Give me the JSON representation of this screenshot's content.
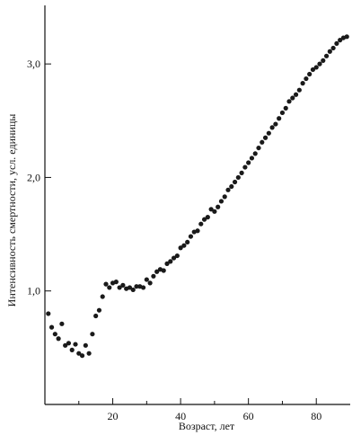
{
  "chart_data": {
    "type": "scatter",
    "title": "",
    "xlabel": "Возраст, лет",
    "ylabel": "Интенсивность смертности, усл. единицы",
    "xlim": [
      0,
      90
    ],
    "ylim": [
      0.0,
      3.5
    ],
    "grid": false,
    "legend": "none",
    "x_ticks": [
      {
        "value": 20,
        "label": "20"
      },
      {
        "value": 40,
        "label": "40"
      },
      {
        "value": 60,
        "label": "60"
      },
      {
        "value": 80,
        "label": "80"
      }
    ],
    "x_minor_ticks": [
      10,
      30,
      50,
      70
    ],
    "y_ticks": [
      {
        "value": 1.0,
        "label": "1,0"
      },
      {
        "value": 2.0,
        "label": "2,0"
      },
      {
        "value": 3.0,
        "label": "3,0"
      }
    ],
    "series": [
      {
        "points": [
          [
            1,
            0.8
          ],
          [
            2,
            0.68
          ],
          [
            3,
            0.62
          ],
          [
            4,
            0.58
          ],
          [
            5,
            0.71
          ],
          [
            6,
            0.52
          ],
          [
            7,
            0.54
          ],
          [
            8,
            0.48
          ],
          [
            9,
            0.53
          ],
          [
            10,
            0.45
          ],
          [
            11,
            0.43
          ],
          [
            12,
            0.52
          ],
          [
            13,
            0.45
          ],
          [
            14,
            0.62
          ],
          [
            15,
            0.78
          ],
          [
            16,
            0.83
          ],
          [
            17,
            0.95
          ],
          [
            18,
            1.06
          ],
          [
            19,
            1.03
          ],
          [
            20,
            1.07
          ],
          [
            21,
            1.08
          ],
          [
            22,
            1.03
          ],
          [
            23,
            1.05
          ],
          [
            24,
            1.02
          ],
          [
            25,
            1.03
          ],
          [
            26,
            1.01
          ],
          [
            27,
            1.04
          ],
          [
            28,
            1.04
          ],
          [
            29,
            1.03
          ],
          [
            30,
            1.1
          ],
          [
            31,
            1.07
          ],
          [
            32,
            1.13
          ],
          [
            33,
            1.17
          ],
          [
            34,
            1.19
          ],
          [
            35,
            1.18
          ],
          [
            36,
            1.24
          ],
          [
            37,
            1.26
          ],
          [
            38,
            1.29
          ],
          [
            39,
            1.31
          ],
          [
            40,
            1.38
          ],
          [
            41,
            1.4
          ],
          [
            42,
            1.43
          ],
          [
            43,
            1.48
          ],
          [
            44,
            1.52
          ],
          [
            45,
            1.53
          ],
          [
            46,
            1.59
          ],
          [
            47,
            1.63
          ],
          [
            48,
            1.65
          ],
          [
            49,
            1.72
          ],
          [
            50,
            1.7
          ],
          [
            51,
            1.74
          ],
          [
            52,
            1.79
          ],
          [
            53,
            1.83
          ],
          [
            54,
            1.89
          ],
          [
            55,
            1.92
          ],
          [
            56,
            1.96
          ],
          [
            57,
            2.0
          ],
          [
            58,
            2.04
          ],
          [
            59,
            2.09
          ],
          [
            60,
            2.13
          ],
          [
            61,
            2.17
          ],
          [
            62,
            2.21
          ],
          [
            63,
            2.26
          ],
          [
            64,
            2.31
          ],
          [
            65,
            2.35
          ],
          [
            66,
            2.39
          ],
          [
            67,
            2.44
          ],
          [
            68,
            2.47
          ],
          [
            69,
            2.52
          ],
          [
            70,
            2.57
          ],
          [
            71,
            2.61
          ],
          [
            72,
            2.67
          ],
          [
            73,
            2.7
          ],
          [
            74,
            2.73
          ],
          [
            75,
            2.77
          ],
          [
            76,
            2.83
          ],
          [
            77,
            2.87
          ],
          [
            78,
            2.91
          ],
          [
            79,
            2.95
          ],
          [
            80,
            2.97
          ],
          [
            81,
            3.0
          ],
          [
            82,
            3.03
          ],
          [
            83,
            3.07
          ],
          [
            84,
            3.11
          ],
          [
            85,
            3.14
          ],
          [
            86,
            3.18
          ],
          [
            87,
            3.21
          ],
          [
            88,
            3.23
          ],
          [
            89,
            3.24
          ]
        ]
      }
    ]
  }
}
